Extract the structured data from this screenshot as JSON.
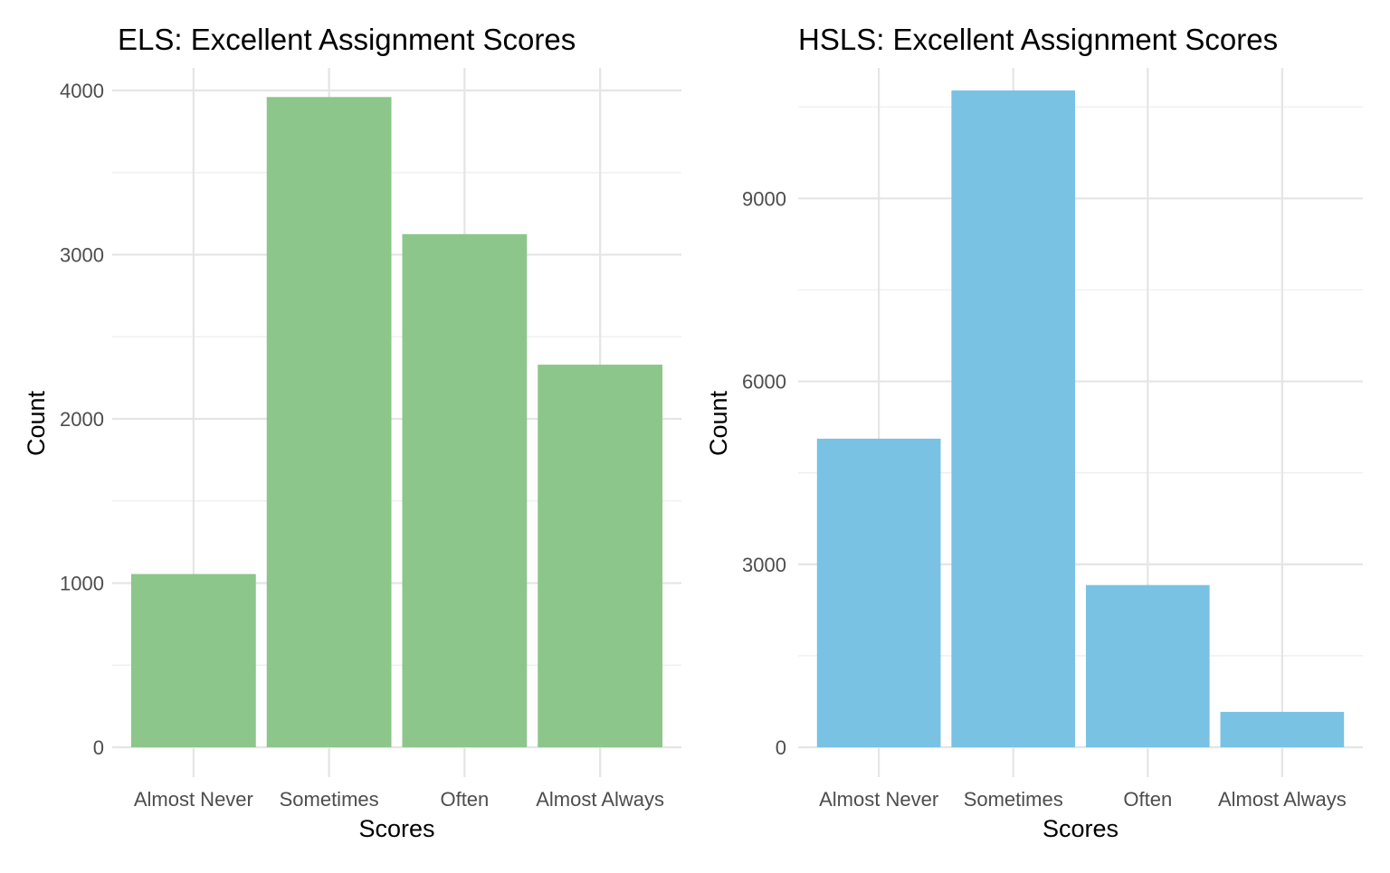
{
  "chart_data": [
    {
      "type": "bar",
      "title": "ELS: Excellent Assignment Scores",
      "xlabel": "Scores",
      "ylabel": "Count",
      "categories": [
        "Almost Never",
        "Sometimes",
        "Often",
        "Almost Always"
      ],
      "values": [
        1055,
        3960,
        3125,
        2330
      ],
      "ylim": [
        0,
        4000
      ],
      "yticks": [
        0,
        1000,
        2000,
        3000,
        4000
      ],
      "bar_color": "#8cc68a",
      "grid": true
    },
    {
      "type": "bar",
      "title": "HSLS: Excellent Assignment Scores",
      "xlabel": "Scores",
      "ylabel": "Count",
      "categories": [
        "Almost Never",
        "Sometimes",
        "Often",
        "Almost Always"
      ],
      "values": [
        5060,
        10770,
        2660,
        580
      ],
      "ylim": [
        0,
        10770
      ],
      "yticks": [
        0,
        3000,
        6000,
        9000
      ],
      "bar_color": "#7ac2e4",
      "grid": true
    }
  ]
}
